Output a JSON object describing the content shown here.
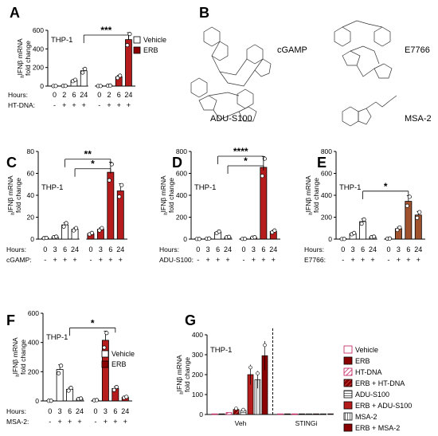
{
  "colors": {
    "vehicle": "#ffffff",
    "erb": "#8b0000",
    "erb_light": "#a52a2a",
    "hatch": "#c2185b",
    "point": "#ffffff",
    "axis": "#000000"
  },
  "panel_B": {
    "label": "B",
    "compounds": [
      "cGAMP",
      "E7766",
      "ADU-S100",
      "MSA-2"
    ]
  },
  "chart_data": [
    {
      "id": "A",
      "type": "bar",
      "title": "THP-1",
      "ylabel_main": "IFNβ mRNA",
      "ylabel_sub": "fold change",
      "ylabel_prefix": "h",
      "yticks": [
        0,
        200,
        400,
        600
      ],
      "ylim": [
        0,
        600
      ],
      "rows": [
        {
          "label": "Hours:",
          "cells": [
            "0",
            "2",
            "6",
            "24",
            "0",
            "2",
            "6",
            "24"
          ]
        },
        {
          "label": "HT-DNA:",
          "cells": [
            "-",
            "+",
            "+",
            "+",
            "-",
            "+",
            "+",
            "+"
          ]
        }
      ],
      "series": [
        {
          "name": "Vehicle",
          "values": [
            1,
            2,
            60,
            165
          ]
        },
        {
          "name": "ERB",
          "values": [
            1,
            5,
            100,
            500
          ]
        }
      ],
      "legend": [
        "Vehicle",
        "ERB"
      ],
      "significance": "***"
    },
    {
      "id": "C",
      "type": "bar",
      "title": "THP-1",
      "ylabel_main": "IFNβ mRNA",
      "ylabel_sub": "fold change",
      "ylabel_prefix": "h",
      "yticks": [
        0,
        20,
        40,
        60,
        80
      ],
      "ylim": [
        0,
        80
      ],
      "rows": [
        {
          "label": "Hours:",
          "cells": [
            "0",
            "3",
            "6",
            "24",
            "0",
            "3",
            "6",
            "24"
          ]
        },
        {
          "label": "cGAMP:",
          "cells": [
            "-",
            "+",
            "+",
            "+",
            "-",
            "+",
            "+",
            "+"
          ]
        }
      ],
      "series": [
        {
          "name": "Vehicle",
          "values": [
            1,
            2,
            13,
            9
          ]
        },
        {
          "name": "ERB",
          "values": [
            5,
            9,
            61,
            44
          ]
        }
      ],
      "significance": [
        "**",
        "*"
      ]
    },
    {
      "id": "D",
      "type": "bar",
      "title": "THP-1",
      "ylabel_main": "IFNβ mRNA",
      "ylabel_sub": "fold change",
      "ylabel_prefix": "h",
      "yticks": [
        0,
        200,
        400,
        600,
        800
      ],
      "ylim": [
        0,
        800
      ],
      "rows": [
        {
          "label": "Hours:",
          "cells": [
            "0",
            "3",
            "6",
            "24",
            "0",
            "3",
            "6",
            "24"
          ]
        },
        {
          "label": "ADU-S100:",
          "cells": [
            "-",
            "+",
            "+",
            "+",
            "-",
            "+",
            "+",
            "+"
          ]
        }
      ],
      "series": [
        {
          "name": "Vehicle",
          "values": [
            1,
            5,
            62,
            18
          ]
        },
        {
          "name": "ERB",
          "values": [
            2,
            15,
            655,
            70
          ]
        }
      ],
      "significance": [
        "****",
        "*"
      ]
    },
    {
      "id": "E",
      "type": "bar",
      "title": "THP-1",
      "ylabel_main": "IFNβ mRNA",
      "ylabel_sub": "fold change",
      "ylabel_prefix": "h",
      "yticks": [
        0,
        200,
        400,
        600,
        800
      ],
      "ylim": [
        0,
        800
      ],
      "rows": [
        {
          "label": "Hours:",
          "cells": [
            "0",
            "3",
            "6",
            "24",
            "0",
            "3",
            "6",
            "24"
          ]
        },
        {
          "label": "E7766:",
          "cells": [
            "-",
            "+",
            "+",
            "+",
            "-",
            "+",
            "+",
            "+"
          ]
        }
      ],
      "series": [
        {
          "name": "Vehicle",
          "values": [
            1,
            50,
            160,
            20
          ]
        },
        {
          "name": "ERB",
          "values": [
            5,
            95,
            345,
            220
          ]
        }
      ],
      "significance": "*"
    },
    {
      "id": "F",
      "type": "bar",
      "title": "THP-1",
      "ylabel_main": "IFNβ mRNA",
      "ylabel_sub": "fold change",
      "ylabel_prefix": "h",
      "yticks": [
        0,
        200,
        400,
        600
      ],
      "ylim": [
        0,
        600
      ],
      "rows": [
        {
          "label": "Hours:",
          "cells": [
            "0",
            "3",
            "6",
            "24",
            "0",
            "3",
            "6",
            "24"
          ]
        },
        {
          "label": "MSA-2:",
          "cells": [
            "-",
            "+",
            "+",
            "+",
            "-",
            "+",
            "+",
            "+"
          ]
        }
      ],
      "series": [
        {
          "name": "Vehicle",
          "values": [
            1,
            215,
            80,
            15
          ]
        },
        {
          "name": "ERB",
          "values": [
            5,
            415,
            85,
            25
          ]
        }
      ],
      "legend": [
        "Vehicle",
        "ERB"
      ],
      "significance": "*"
    },
    {
      "id": "G",
      "type": "bar",
      "title": "THP-1",
      "ylabel_main": "IFNβ mRNA",
      "ylabel_sub": "fold change",
      "ylabel_prefix": "h",
      "yticks": [
        0,
        100,
        200,
        300,
        400
      ],
      "ylim": [
        0,
        400
      ],
      "categories": [
        "Veh",
        "STINGi"
      ],
      "series": [
        {
          "name": "Vehicle",
          "values": [
            1,
            1
          ]
        },
        {
          "name": "ERB",
          "values": [
            2,
            1
          ]
        },
        {
          "name": "HT-DNA",
          "values": [
            10,
            1
          ]
        },
        {
          "name": "ERB + HT-DNA",
          "values": [
            25,
            1
          ]
        },
        {
          "name": "ADU-S100",
          "values": [
            20,
            1
          ]
        },
        {
          "name": "ERB + ADU-S100",
          "values": [
            200,
            1
          ]
        },
        {
          "name": "MSA-2",
          "values": [
            175,
            1
          ]
        },
        {
          "name": "ERB + MSA-2",
          "values": [
            295,
            1
          ]
        }
      ]
    }
  ]
}
